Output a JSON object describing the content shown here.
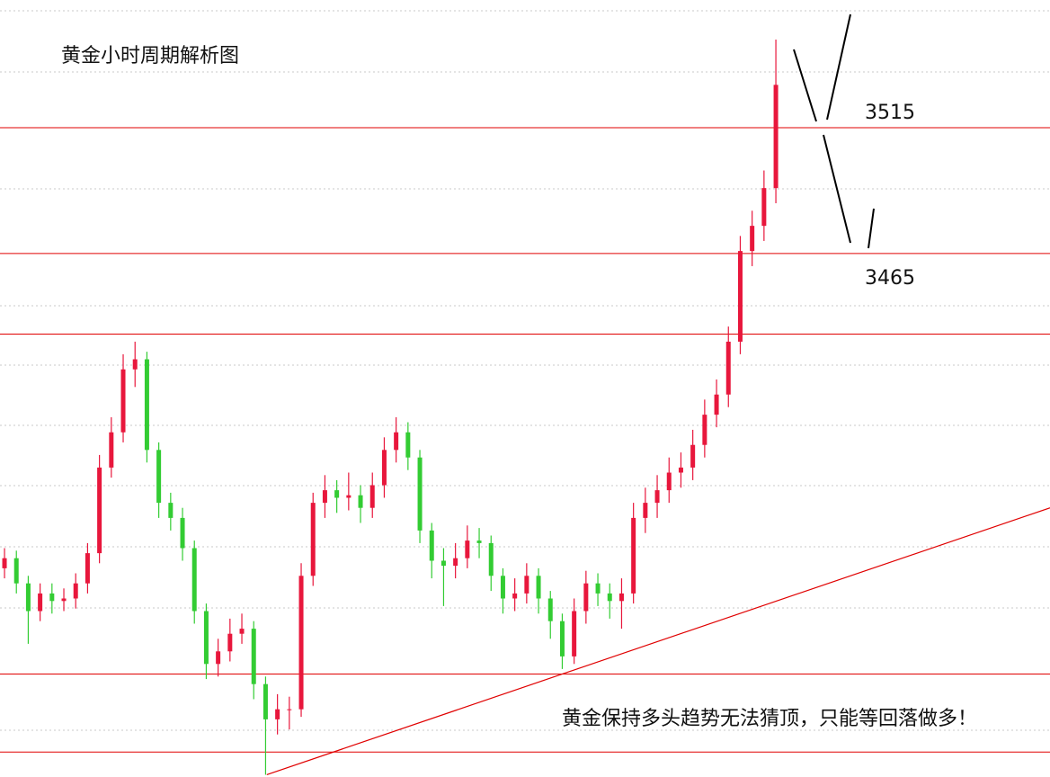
{
  "chart_data": {
    "type": "candlestick",
    "title": "黄金小时周期解析图",
    "annotation": "黄金保持多头趋势无法猜顶，只能等回落做多！",
    "up_color": "#e8173c",
    "down_color": "#33cc33",
    "level_color": "#e00000",
    "xlim": [
      -0.38,
      88.1
    ],
    "ylim": [
      3257.1,
      3565.7
    ],
    "labeled_levels": [
      3515,
      3465
    ],
    "levels": [
      3433,
      3298,
      3267
    ],
    "trendline": {
      "x": [
        22.1,
        88.1
      ],
      "y": [
        3258,
        3364
      ]
    },
    "open": [
      3340,
      3344,
      3334,
      3323,
      3330,
      3327,
      3328,
      3334,
      3346,
      3380,
      3394,
      3419,
      3423,
      3387,
      3366,
      3360,
      3348,
      3323,
      3302,
      3307,
      3314,
      3316,
      3294,
      3280,
      3284,
      3284,
      3337,
      3366,
      3371,
      3368,
      3369,
      3364,
      3373,
      3387,
      3394,
      3384,
      3355,
      3343,
      3341,
      3344,
      3351,
      3350,
      3337,
      3328,
      3330,
      3337,
      3328,
      3319,
      3305,
      3323,
      3334,
      3330,
      3327,
      3330,
      3360,
      3366,
      3371,
      3378,
      3380,
      3389,
      3401,
      3409,
      3430,
      3466,
      3476,
      3491
    ],
    "close": [
      3344,
      3334,
      3323,
      3330,
      3327,
      3328,
      3334,
      3346,
      3380,
      3394,
      3419,
      3423,
      3387,
      3366,
      3360,
      3348,
      3323,
      3302,
      3307,
      3314,
      3316,
      3294,
      3280,
      3284,
      3284,
      3337,
      3366,
      3371,
      3368,
      3369,
      3364,
      3373,
      3387,
      3394,
      3384,
      3355,
      3343,
      3341,
      3344,
      3351,
      3350,
      3337,
      3328,
      3330,
      3337,
      3328,
      3319,
      3305,
      3323,
      3334,
      3330,
      3327,
      3330,
      3360,
      3366,
      3371,
      3378,
      3380,
      3389,
      3401,
      3409,
      3430,
      3466,
      3476,
      3491,
      3532
    ],
    "high": [
      3348,
      3347,
      3337,
      3334,
      3334,
      3332,
      3338,
      3350,
      3385,
      3400,
      3425,
      3430,
      3426,
      3390,
      3370,
      3364,
      3351,
      3326,
      3312,
      3320,
      3322,
      3319,
      3297,
      3290,
      3289,
      3342,
      3370,
      3377,
      3375,
      3378,
      3373,
      3378,
      3392,
      3400,
      3398,
      3387,
      3358,
      3348,
      3350,
      3357,
      3356,
      3353,
      3340,
      3336,
      3342,
      3340,
      3331,
      3322,
      3328,
      3339,
      3338,
      3334,
      3336,
      3366,
      3372,
      3377,
      3384,
      3386,
      3395,
      3407,
      3415,
      3436,
      3472,
      3482,
      3498,
      3550
    ],
    "low": [
      3336,
      3330,
      3310,
      3319,
      3322,
      3323,
      3324,
      3330,
      3342,
      3376,
      3390,
      3412,
      3382,
      3360,
      3355,
      3343,
      3318,
      3296,
      3297,
      3303,
      3310,
      3288,
      3258,
      3274,
      3276,
      3281,
      3333,
      3360,
      3362,
      3363,
      3358,
      3360,
      3368,
      3382,
      3379,
      3350,
      3336,
      3325,
      3336,
      3340,
      3344,
      3331,
      3322,
      3323,
      3326,
      3322,
      3312,
      3300,
      3302,
      3318,
      3325,
      3320,
      3316,
      3326,
      3354,
      3360,
      3366,
      3372,
      3375,
      3384,
      3396,
      3404,
      3425,
      3460,
      3470,
      3485
    ]
  }
}
